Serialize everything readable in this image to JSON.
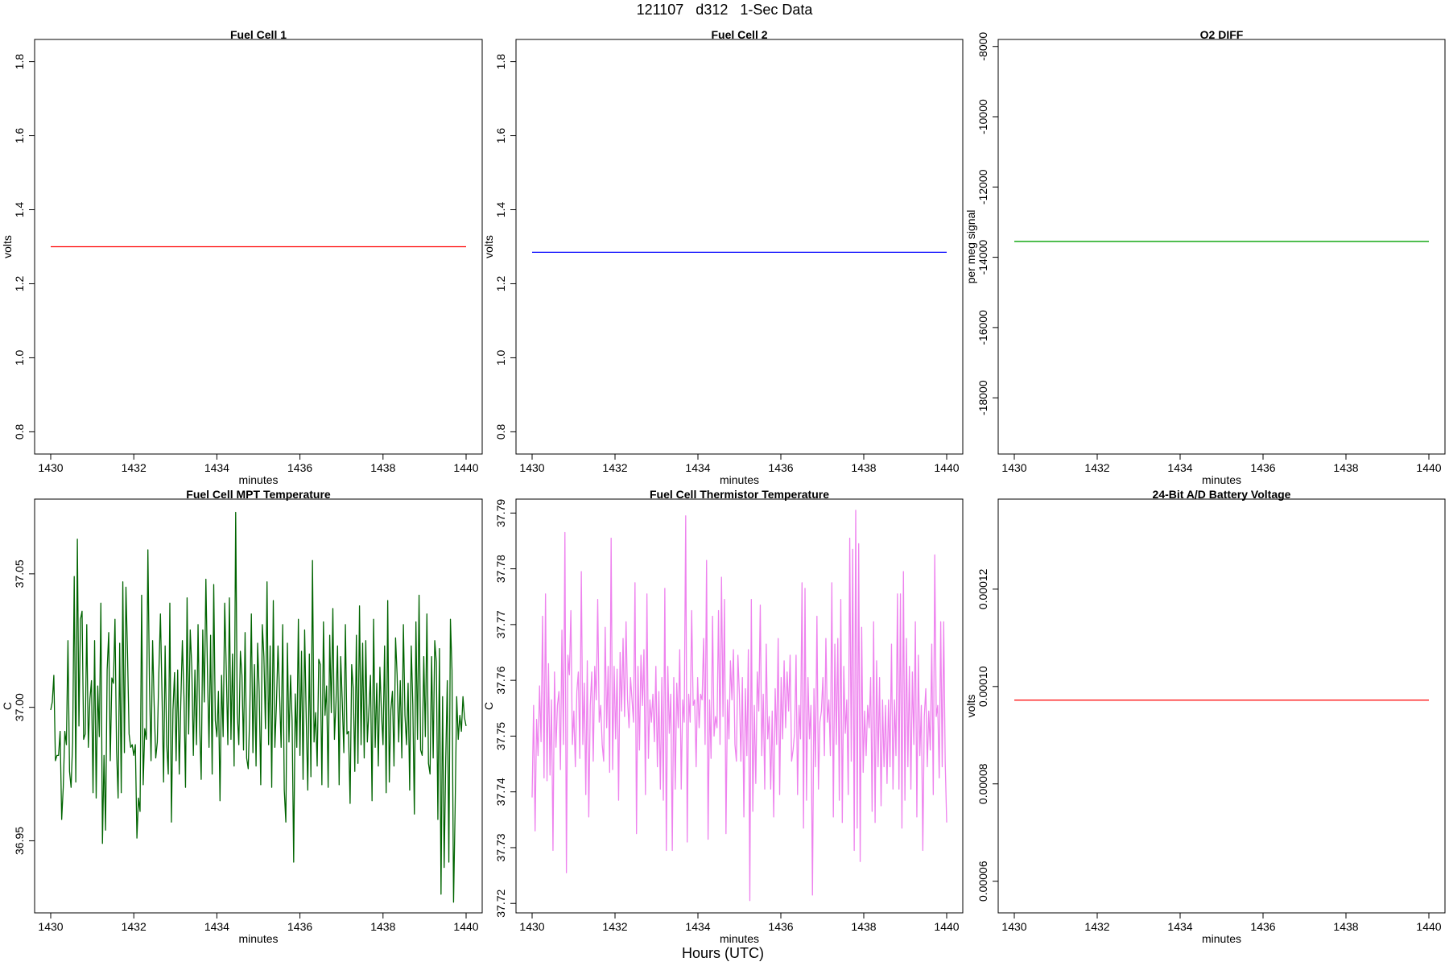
{
  "figure": {
    "title": "121107   d312   1-Sec Data",
    "xlabel_global": "Hours (UTC)"
  },
  "chart_data": [
    {
      "type": "line",
      "title": "Fuel Cell 1",
      "xlabel": "minutes",
      "ylabel": "volts",
      "xlim": [
        1430,
        1440
      ],
      "ylim": [
        0.74,
        1.86
      ],
      "xticks": [
        "1430",
        "1432",
        "1434",
        "1436",
        "1438",
        "1440"
      ],
      "yticks": [
        "0.8",
        "1.0",
        "1.2",
        "1.4",
        "1.6",
        "1.8"
      ],
      "color": "#ff0000",
      "series": [
        {
          "x": [
            1430,
            1440
          ],
          "y": [
            1.3,
            1.3
          ]
        }
      ]
    },
    {
      "type": "line",
      "title": "Fuel Cell 2",
      "xlabel": "minutes",
      "ylabel": "volts",
      "xlim": [
        1430,
        1440
      ],
      "ylim": [
        0.74,
        1.86
      ],
      "xticks": [
        "1430",
        "1432",
        "1434",
        "1436",
        "1438",
        "1440"
      ],
      "yticks": [
        "0.8",
        "1.0",
        "1.2",
        "1.4",
        "1.6",
        "1.8"
      ],
      "color": "#0000ff",
      "series": [
        {
          "x": [
            1430,
            1440
          ],
          "y": [
            1.285,
            1.285
          ]
        }
      ]
    },
    {
      "type": "line",
      "title": "O2 DIFF",
      "xlabel": "minutes",
      "ylabel": "per meg signal",
      "xlim": [
        1430,
        1440
      ],
      "ylim": [
        -19600,
        -7800
      ],
      "xticks": [
        "1430",
        "1432",
        "1434",
        "1436",
        "1438",
        "1440"
      ],
      "yticks": [
        "-18000",
        "-16000",
        "-14000",
        "-12000",
        "-10000",
        "-8000"
      ],
      "color": "#00a000",
      "series": [
        {
          "x": [
            1430,
            1440
          ],
          "y": [
            -13550,
            -13550
          ]
        }
      ]
    },
    {
      "type": "line",
      "title": "Fuel Cell MPT Temperature",
      "xlabel": "minutes",
      "ylabel": "C",
      "xlim": [
        1430,
        1440
      ],
      "ylim": [
        36.923,
        37.078
      ],
      "xticks": [
        "1430",
        "1432",
        "1434",
        "1436",
        "1438",
        "1440"
      ],
      "yticks": [
        "36.95",
        "37.00",
        "37.05"
      ],
      "color": "#006400",
      "series": [
        {
          "x_start": 1430,
          "x_end": 1440,
          "y": [
            36.999,
            37.002,
            37.012,
            36.98,
            36.982,
            36.982,
            36.991,
            36.958,
            36.97,
            36.991,
            36.986,
            37.025,
            36.976,
            36.97,
            36.987,
            37.049,
            36.972,
            37.063,
            36.993,
            37.033,
            37.036,
            36.988,
            36.99,
            37.031,
            36.985,
            37.003,
            37.01,
            36.968,
            37.025,
            36.966,
            37.008,
            36.989,
            37.039,
            36.949,
            36.982,
            36.954,
            37.014,
            37.028,
            36.98,
            37.011,
            37.009,
            37.033,
            36.984,
            36.966,
            37.024,
            36.968,
            37.047,
            36.983,
            37.045,
            37.02,
            36.99,
            36.985,
            36.986,
            36.982,
            36.986,
            36.951,
            36.966,
            36.961,
            37.042,
            36.971,
            36.992,
            36.988,
            37.059,
            37.009,
            36.98,
            37.025,
            37.001,
            36.981,
            36.987,
            37.013,
            37.035,
            37.005,
            36.972,
            37.023,
            36.986,
            36.975,
            37.039,
            36.957,
            36.999,
            37.013,
            36.98,
            37.014,
            36.975,
            37.002,
            37.025,
            37.004,
            36.97,
            37.041,
            36.99,
            37.029,
            37.015,
            36.982,
            37.014,
            36.986,
            37.031,
            36.994,
            36.973,
            37.029,
            37.002,
            37.048,
            37.013,
            36.985,
            37.027,
            36.975,
            37.046,
            36.995,
            36.989,
            37.006,
            36.965,
            37.012,
            36.989,
            37.039,
            37.014,
            36.986,
            37.041,
            36.988,
            37.02,
            36.978,
            37.073,
            36.998,
            36.986,
            37.021,
            37.012,
            36.984,
            37.028,
            36.981,
            36.977,
            36.998,
            37.035,
            36.983,
            37.016,
            36.978,
            37.024,
            37.006,
            36.971,
            37.031,
            37.019,
            36.992,
            37.047,
            36.986,
            37.023,
            36.97,
            37.04,
            36.985,
            37.001,
            37.023,
            37.005,
            36.985,
            37.031,
            36.969,
            36.957,
            37.024,
            36.987,
            37.012,
            36.995,
            36.942,
            37.005,
            36.985,
            37.033,
            36.982,
            37.021,
            36.973,
            37.029,
            36.996,
            36.969,
            37.02,
            36.974,
            37.055,
            36.987,
            36.998,
            36.978,
            37.018,
            37.016,
            36.971,
            37.032,
            36.997,
            37.008,
            36.97,
            37.027,
            36.998,
            37.037,
            36.988,
            37.002,
            37.023,
            36.971,
            37.019,
            37.002,
            36.983,
            37.031,
            36.99,
            36.991,
            36.964,
            37.016,
            37.007,
            36.976,
            37.027,
            36.979,
            37.038,
            36.986,
            37.024,
            36.981,
            37.025,
            36.987,
            36.999,
            37.012,
            36.965,
            37.033,
            36.985,
            37.009,
            36.978,
            37.015,
            36.998,
            36.986,
            37.023,
            36.968,
            37.04,
            36.972,
            36.999,
            37.006,
            36.978,
            37.026,
            37.012,
            36.987,
            37.01,
            36.981,
            37.031,
            36.997,
            36.986,
            37.009,
            36.969,
            37.023,
            37.001,
            36.96,
            37.032,
            36.988,
            37.042,
            36.984,
            36.982,
            37.019,
            36.989,
            37.035,
            36.979,
            36.975,
            37.019,
            36.981,
            37.025,
            37.017,
            36.958,
            37.022,
            36.93,
            37.004,
            36.94,
            36.98,
            37.01,
            36.942,
            37.033,
            37.014,
            36.927,
            36.962,
            37.004,
            36.988,
            36.997,
            36.991,
            37.004,
            36.996,
            36.993
          ]
        }
      ]
    },
    {
      "type": "line",
      "title": "Fuel Cell Thermistor Temperature",
      "xlabel": "minutes",
      "ylabel": "C",
      "xlim": [
        1430,
        1440
      ],
      "ylim": [
        37.7183,
        37.7925
      ],
      "xticks": [
        "1430",
        "1432",
        "1434",
        "1436",
        "1438",
        "1440"
      ],
      "yticks": [
        "37.72",
        "37.73",
        "37.74",
        "37.75",
        "37.76",
        "37.77",
        "37.78",
        "37.79"
      ],
      "color": "#ee82ee",
      "series": [
        {
          "x_start": 1430,
          "x_end": 1440,
          "y": [
            37.739,
            37.7555,
            37.733,
            37.753,
            37.7465,
            37.759,
            37.749,
            37.7715,
            37.7425,
            37.7755,
            37.742,
            37.763,
            37.743,
            37.7565,
            37.7295,
            37.7615,
            37.748,
            37.7555,
            37.758,
            37.744,
            37.769,
            37.7485,
            37.7865,
            37.7255,
            37.7645,
            37.761,
            37.7725,
            37.7485,
            37.7545,
            37.7445,
            37.758,
            37.7615,
            37.746,
            37.7795,
            37.7485,
            37.7595,
            37.7395,
            37.7635,
            37.7355,
            37.7555,
            37.7615,
            37.7455,
            37.7625,
            37.7565,
            37.7745,
            37.7525,
            37.7555,
            37.7485,
            37.7455,
            37.7695,
            37.7515,
            37.7625,
            37.7435,
            37.7855,
            37.744,
            37.7625,
            37.7495,
            37.762,
            37.7385,
            37.765,
            37.7545,
            37.7675,
            37.7535,
            37.7705,
            37.7565,
            37.7515,
            37.7605,
            37.7565,
            37.7525,
            37.7775,
            37.7325,
            37.7625,
            37.7475,
            37.7645,
            37.7555,
            37.7655,
            37.7395,
            37.7755,
            37.746,
            37.7565,
            37.7525,
            37.7575,
            37.749,
            37.7625,
            37.7445,
            37.758,
            37.7405,
            37.7605,
            37.7385,
            37.7765,
            37.7295,
            37.7625,
            37.7505,
            37.7575,
            37.7295,
            37.7605,
            37.7405,
            37.7595,
            37.7515,
            37.7655,
            37.7405,
            37.7565,
            37.7525,
            37.7895,
            37.731,
            37.7575,
            37.7525,
            37.7725,
            37.7555,
            37.7565,
            37.7445,
            37.7605,
            37.7515,
            37.7575,
            37.7565,
            37.7675,
            37.7485,
            37.7815,
            37.7315,
            37.7565,
            37.746,
            37.7715,
            37.75,
            37.7535,
            37.7515,
            37.7725,
            37.7485,
            37.7785,
            37.7535,
            37.7745,
            37.7325,
            37.7565,
            37.7495,
            37.7635,
            37.7565,
            37.7655,
            37.7485,
            37.7455,
            37.7645,
            37.7575,
            37.7455,
            37.7605,
            37.7355,
            37.7585,
            37.7465,
            37.7655,
            37.7205,
            37.7745,
            37.7365,
            37.7555,
            37.7415,
            37.7615,
            37.7545,
            37.7735,
            37.7465,
            37.7575,
            37.7405,
            37.7665,
            37.7495,
            37.7535,
            37.7405,
            37.7545,
            37.7355,
            37.7585,
            37.7485,
            37.7675,
            37.7395,
            37.7605,
            37.7495,
            37.7635,
            37.7515,
            37.7615,
            37.7545,
            37.7645,
            37.7455,
            37.7475,
            37.7505,
            37.7645,
            37.7395,
            37.7555,
            37.7495,
            37.7775,
            37.7335,
            37.7765,
            37.7385,
            37.7605,
            37.7495,
            37.7555,
            37.7215,
            37.7585,
            37.7445,
            37.7715,
            37.7405,
            37.7525,
            37.7545,
            37.7605,
            37.7465,
            37.7675,
            37.7525,
            37.7565,
            37.7465,
            37.7775,
            37.7355,
            37.7665,
            37.7485,
            37.7675,
            37.7385,
            37.7745,
            37.7345,
            37.7625,
            37.7505,
            37.7565,
            37.7395,
            37.7855,
            37.7455,
            37.7835,
            37.7295,
            37.7905,
            37.7335,
            37.7845,
            37.7275,
            37.7695,
            37.7435,
            37.7545,
            37.7465,
            37.7555,
            37.7515,
            37.7605,
            37.7365,
            37.7705,
            37.7345,
            37.7635,
            37.7445,
            37.7605,
            37.7375,
            37.7565,
            37.7445,
            37.7555,
            37.7415,
            37.7565,
            37.7445,
            37.7665,
            37.7405,
            37.7565,
            37.7465,
            37.7755,
            37.7405,
            37.7755,
            37.7335,
            37.7795,
            37.7385,
            37.7675,
            37.7445,
            37.7625,
            37.7405,
            37.7615,
            37.7485,
            37.7705,
            37.7355,
            37.7645,
            37.7465,
            37.7555,
            37.7295,
            37.7535,
            37.7585,
            37.7445,
            37.7545,
            37.7475,
            37.7665,
            37.7395,
            37.7825,
            37.7535,
            37.7555,
            37.7425,
            37.7705,
            37.7445,
            37.7705,
            37.7455,
            37.7345
          ]
        }
      ]
    },
    {
      "type": "line",
      "title": "24-Bit A/D Battery Voltage",
      "xlabel": "minutes",
      "ylabel": "volts",
      "xlim": [
        1430,
        1440
      ],
      "ylim": [
        5.35e-05,
        0.0001385
      ],
      "xticks": [
        "1430",
        "1432",
        "1434",
        "1436",
        "1438",
        "1440"
      ],
      "yticks": [
        "0.00006",
        "0.00008",
        "0.00010",
        "0.00012"
      ],
      "color": "#ff0000",
      "series": [
        {
          "x": [
            1430,
            1440
          ],
          "y": [
            9.72e-05,
            9.72e-05
          ]
        }
      ]
    }
  ]
}
